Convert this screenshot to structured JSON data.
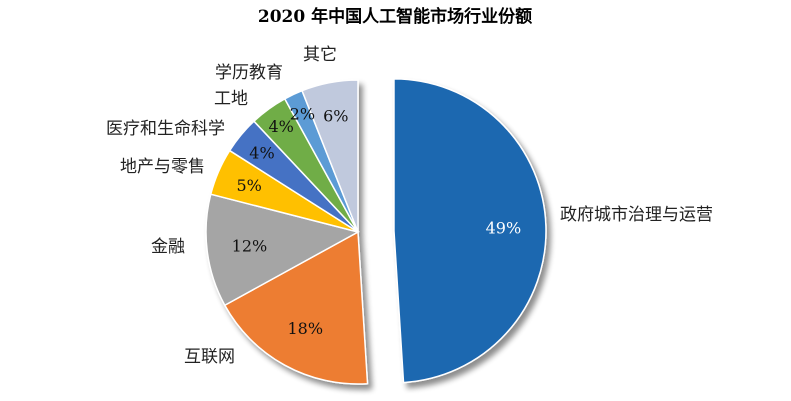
{
  "chart_data": {
    "type": "pie",
    "title": "2020 年中国人工智能市场行业份额",
    "exploded": "政府城市治理与运营",
    "slices": [
      {
        "label": "政府城市治理与运营",
        "value": 49,
        "value_label": "49%",
        "color": "#1f67b0"
      },
      {
        "label": "互联网",
        "value": 18,
        "value_label": "18%",
        "color": "#ed7d31"
      },
      {
        "label": "金融",
        "value": 12,
        "value_label": "12%",
        "color": "#a5a5a5"
      },
      {
        "label": "地产与零售",
        "value": 5,
        "value_label": "5%",
        "color": "#ffc000"
      },
      {
        "label": "医疗和生命科学",
        "value": 4,
        "value_label": "4%",
        "color": "#4472c4"
      },
      {
        "label": "工地",
        "value": 4,
        "value_label": "4%",
        "color": "#70ad47"
      },
      {
        "label": "学历教育",
        "value": 2,
        "value_label": "2%",
        "color": "#5b9bd5"
      },
      {
        "label": "其它",
        "value": 6,
        "value_label": "6%",
        "color": "#c0c9dd"
      }
    ]
  }
}
